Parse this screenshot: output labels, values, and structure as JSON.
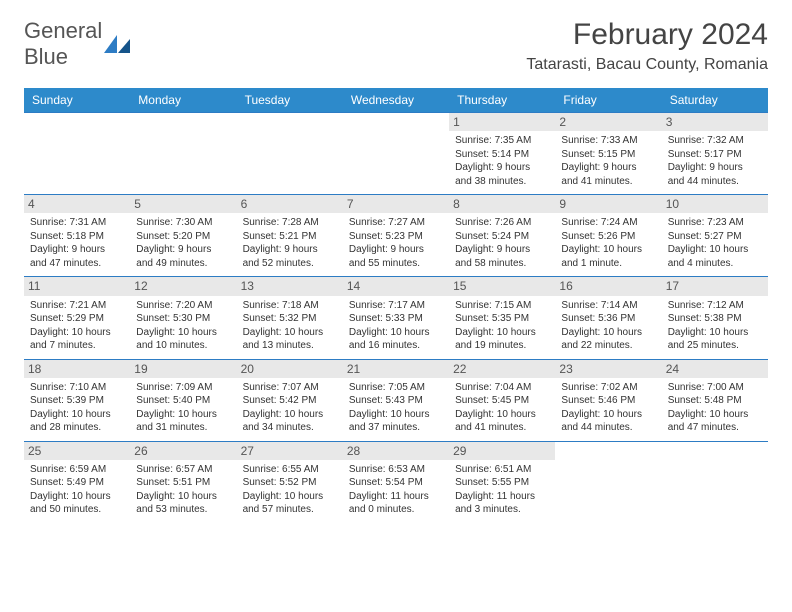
{
  "logo": {
    "textGray": "General",
    "textBlue": "Blue"
  },
  "title": "February 2024",
  "location": "Tatarasti, Bacau County, Romania",
  "colors": {
    "headerBg": "#2d8acb",
    "borderBlue": "#2d7cc4",
    "dayBg": "#e8e8e8"
  },
  "dayNames": [
    "Sunday",
    "Monday",
    "Tuesday",
    "Wednesday",
    "Thursday",
    "Friday",
    "Saturday"
  ],
  "weeks": [
    [
      {
        "num": "",
        "lines": []
      },
      {
        "num": "",
        "lines": []
      },
      {
        "num": "",
        "lines": []
      },
      {
        "num": "",
        "lines": []
      },
      {
        "num": "1",
        "lines": [
          "Sunrise: 7:35 AM",
          "Sunset: 5:14 PM",
          "Daylight: 9 hours and 38 minutes."
        ]
      },
      {
        "num": "2",
        "lines": [
          "Sunrise: 7:33 AM",
          "Sunset: 5:15 PM",
          "Daylight: 9 hours and 41 minutes."
        ]
      },
      {
        "num": "3",
        "lines": [
          "Sunrise: 7:32 AM",
          "Sunset: 5:17 PM",
          "Daylight: 9 hours and 44 minutes."
        ]
      }
    ],
    [
      {
        "num": "4",
        "lines": [
          "Sunrise: 7:31 AM",
          "Sunset: 5:18 PM",
          "Daylight: 9 hours and 47 minutes."
        ]
      },
      {
        "num": "5",
        "lines": [
          "Sunrise: 7:30 AM",
          "Sunset: 5:20 PM",
          "Daylight: 9 hours and 49 minutes."
        ]
      },
      {
        "num": "6",
        "lines": [
          "Sunrise: 7:28 AM",
          "Sunset: 5:21 PM",
          "Daylight: 9 hours and 52 minutes."
        ]
      },
      {
        "num": "7",
        "lines": [
          "Sunrise: 7:27 AM",
          "Sunset: 5:23 PM",
          "Daylight: 9 hours and 55 minutes."
        ]
      },
      {
        "num": "8",
        "lines": [
          "Sunrise: 7:26 AM",
          "Sunset: 5:24 PM",
          "Daylight: 9 hours and 58 minutes."
        ]
      },
      {
        "num": "9",
        "lines": [
          "Sunrise: 7:24 AM",
          "Sunset: 5:26 PM",
          "Daylight: 10 hours and 1 minute."
        ]
      },
      {
        "num": "10",
        "lines": [
          "Sunrise: 7:23 AM",
          "Sunset: 5:27 PM",
          "Daylight: 10 hours and 4 minutes."
        ]
      }
    ],
    [
      {
        "num": "11",
        "lines": [
          "Sunrise: 7:21 AM",
          "Sunset: 5:29 PM",
          "Daylight: 10 hours and 7 minutes."
        ]
      },
      {
        "num": "12",
        "lines": [
          "Sunrise: 7:20 AM",
          "Sunset: 5:30 PM",
          "Daylight: 10 hours and 10 minutes."
        ]
      },
      {
        "num": "13",
        "lines": [
          "Sunrise: 7:18 AM",
          "Sunset: 5:32 PM",
          "Daylight: 10 hours and 13 minutes."
        ]
      },
      {
        "num": "14",
        "lines": [
          "Sunrise: 7:17 AM",
          "Sunset: 5:33 PM",
          "Daylight: 10 hours and 16 minutes."
        ]
      },
      {
        "num": "15",
        "lines": [
          "Sunrise: 7:15 AM",
          "Sunset: 5:35 PM",
          "Daylight: 10 hours and 19 minutes."
        ]
      },
      {
        "num": "16",
        "lines": [
          "Sunrise: 7:14 AM",
          "Sunset: 5:36 PM",
          "Daylight: 10 hours and 22 minutes."
        ]
      },
      {
        "num": "17",
        "lines": [
          "Sunrise: 7:12 AM",
          "Sunset: 5:38 PM",
          "Daylight: 10 hours and 25 minutes."
        ]
      }
    ],
    [
      {
        "num": "18",
        "lines": [
          "Sunrise: 7:10 AM",
          "Sunset: 5:39 PM",
          "Daylight: 10 hours and 28 minutes."
        ]
      },
      {
        "num": "19",
        "lines": [
          "Sunrise: 7:09 AM",
          "Sunset: 5:40 PM",
          "Daylight: 10 hours and 31 minutes."
        ]
      },
      {
        "num": "20",
        "lines": [
          "Sunrise: 7:07 AM",
          "Sunset: 5:42 PM",
          "Daylight: 10 hours and 34 minutes."
        ]
      },
      {
        "num": "21",
        "lines": [
          "Sunrise: 7:05 AM",
          "Sunset: 5:43 PM",
          "Daylight: 10 hours and 37 minutes."
        ]
      },
      {
        "num": "22",
        "lines": [
          "Sunrise: 7:04 AM",
          "Sunset: 5:45 PM",
          "Daylight: 10 hours and 41 minutes."
        ]
      },
      {
        "num": "23",
        "lines": [
          "Sunrise: 7:02 AM",
          "Sunset: 5:46 PM",
          "Daylight: 10 hours and 44 minutes."
        ]
      },
      {
        "num": "24",
        "lines": [
          "Sunrise: 7:00 AM",
          "Sunset: 5:48 PM",
          "Daylight: 10 hours and 47 minutes."
        ]
      }
    ],
    [
      {
        "num": "25",
        "lines": [
          "Sunrise: 6:59 AM",
          "Sunset: 5:49 PM",
          "Daylight: 10 hours and 50 minutes."
        ]
      },
      {
        "num": "26",
        "lines": [
          "Sunrise: 6:57 AM",
          "Sunset: 5:51 PM",
          "Daylight: 10 hours and 53 minutes."
        ]
      },
      {
        "num": "27",
        "lines": [
          "Sunrise: 6:55 AM",
          "Sunset: 5:52 PM",
          "Daylight: 10 hours and 57 minutes."
        ]
      },
      {
        "num": "28",
        "lines": [
          "Sunrise: 6:53 AM",
          "Sunset: 5:54 PM",
          "Daylight: 11 hours and 0 minutes."
        ]
      },
      {
        "num": "29",
        "lines": [
          "Sunrise: 6:51 AM",
          "Sunset: 5:55 PM",
          "Daylight: 11 hours and 3 minutes."
        ]
      },
      {
        "num": "",
        "lines": []
      },
      {
        "num": "",
        "lines": []
      }
    ]
  ]
}
